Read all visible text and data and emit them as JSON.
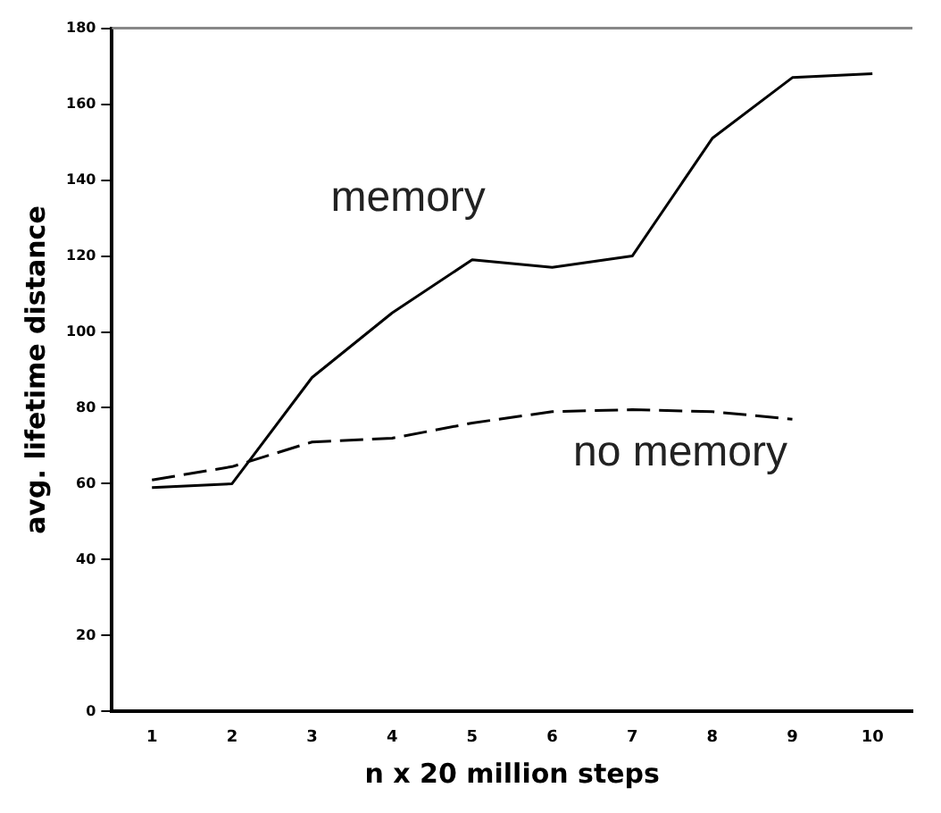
{
  "chart_data": {
    "type": "line",
    "xlabel": "n x 20 million steps",
    "ylabel": "avg. lifetime distance",
    "categories": [
      "1",
      "2",
      "3",
      "4",
      "5",
      "6",
      "7",
      "8",
      "9",
      "10"
    ],
    "series": [
      {
        "name": "memory",
        "color": "#000000",
        "line_style": "solid",
        "values": [
          59,
          60,
          88,
          105,
          119,
          117,
          120,
          151,
          167,
          168
        ]
      },
      {
        "name": "no memory",
        "color": "#000000",
        "line_style": "dashed",
        "values": [
          61,
          64.5,
          71,
          72,
          76,
          79,
          79.5,
          79,
          77,
          null
        ]
      }
    ],
    "ylim": [
      0,
      180
    ],
    "yticks": [
      0,
      20,
      40,
      60,
      80,
      100,
      120,
      140,
      160,
      180
    ],
    "grid": false,
    "legend": false,
    "marker": "none"
  }
}
